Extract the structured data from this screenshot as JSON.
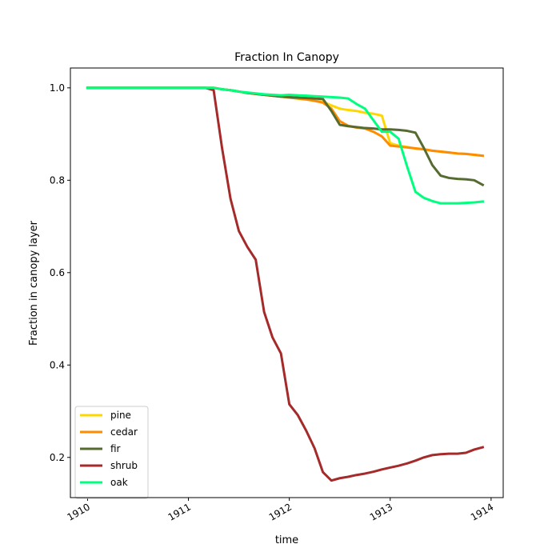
{
  "chart_data": {
    "type": "line",
    "title": "Fraction In Canopy",
    "xlabel": "time",
    "ylabel": "Fraction in canopy layer",
    "xlim": [
      1909.83,
      1914.12
    ],
    "ylim": [
      0.113,
      1.043
    ],
    "x_ticks": [
      1910,
      1911,
      1912,
      1913,
      1914
    ],
    "x_tick_labels": [
      "1910",
      "1911",
      "1912",
      "1913",
      "1914"
    ],
    "y_ticks": [
      0.2,
      0.4,
      0.6,
      0.8,
      1.0
    ],
    "y_tick_labels": [
      "0.2",
      "0.4",
      "0.6",
      "0.8",
      "1.0"
    ],
    "grid": false,
    "legend_position": "lower-left",
    "x": [
      1910.0,
      1910.25,
      1910.5,
      1910.75,
      1911.0,
      1911.083,
      1911.167,
      1911.25,
      1911.333,
      1911.417,
      1911.5,
      1911.583,
      1911.667,
      1911.75,
      1911.833,
      1911.917,
      1912.0,
      1912.083,
      1912.167,
      1912.25,
      1912.333,
      1912.417,
      1912.5,
      1912.583,
      1912.667,
      1912.75,
      1912.833,
      1912.917,
      1913.0,
      1913.083,
      1913.167,
      1913.25,
      1913.333,
      1913.417,
      1913.5,
      1913.583,
      1913.667,
      1913.75,
      1913.833,
      1913.917
    ],
    "series": [
      {
        "name": "pine",
        "color": "#ffd700",
        "values": [
          1.0,
          1.0,
          1.0,
          1.0,
          1.0,
          1.0,
          1.0,
          1.0,
          0.997,
          0.995,
          0.992,
          0.989,
          0.987,
          0.985,
          0.983,
          0.981,
          0.979,
          0.977,
          0.975,
          0.972,
          0.97,
          0.962,
          0.955,
          0.952,
          0.95,
          0.946,
          0.944,
          0.94,
          0.88,
          0.875,
          0.872,
          0.869,
          0.867,
          0.864,
          0.862,
          0.86,
          0.858,
          0.857,
          0.855,
          0.853
        ]
      },
      {
        "name": "cedar",
        "color": "#ff8c00",
        "values": [
          1.0,
          1.0,
          1.0,
          1.0,
          1.0,
          1.0,
          1.0,
          1.0,
          0.997,
          0.995,
          0.992,
          0.989,
          0.987,
          0.985,
          0.983,
          0.981,
          0.979,
          0.977,
          0.975,
          0.972,
          0.968,
          0.955,
          0.928,
          0.918,
          0.914,
          0.912,
          0.905,
          0.895,
          0.875,
          0.873,
          0.871,
          0.869,
          0.867,
          0.864,
          0.862,
          0.86,
          0.858,
          0.857,
          0.855,
          0.853
        ]
      },
      {
        "name": "fir",
        "color": "#556b2f",
        "values": [
          1.0,
          1.0,
          1.0,
          1.0,
          1.0,
          1.0,
          1.0,
          1.0,
          0.997,
          0.995,
          0.992,
          0.989,
          0.987,
          0.985,
          0.983,
          0.981,
          0.98,
          0.979,
          0.978,
          0.977,
          0.976,
          0.95,
          0.92,
          0.917,
          0.915,
          0.913,
          0.912,
          0.91,
          0.91,
          0.909,
          0.907,
          0.903,
          0.87,
          0.833,
          0.81,
          0.805,
          0.803,
          0.802,
          0.8,
          0.79
        ]
      },
      {
        "name": "shrub",
        "color": "#a52a2a",
        "values": [
          1.0,
          1.0,
          1.0,
          1.0,
          1.0,
          1.0,
          1.0,
          0.995,
          0.87,
          0.76,
          0.69,
          0.656,
          0.628,
          0.515,
          0.46,
          0.425,
          0.315,
          0.292,
          0.258,
          0.22,
          0.168,
          0.15,
          0.155,
          0.158,
          0.162,
          0.165,
          0.169,
          0.174,
          0.178,
          0.182,
          0.187,
          0.193,
          0.2,
          0.205,
          0.207,
          0.208,
          0.208,
          0.21,
          0.217,
          0.222
        ]
      },
      {
        "name": "oak",
        "color": "#00ff7f",
        "values": [
          1.0,
          1.0,
          1.0,
          1.0,
          1.0,
          1.0,
          1.0,
          1.0,
          0.997,
          0.995,
          0.992,
          0.99,
          0.988,
          0.986,
          0.985,
          0.984,
          0.985,
          0.984,
          0.983,
          0.982,
          0.981,
          0.98,
          0.979,
          0.977,
          0.965,
          0.955,
          0.93,
          0.905,
          0.905,
          0.89,
          0.83,
          0.775,
          0.762,
          0.755,
          0.75,
          0.75,
          0.75,
          0.751,
          0.752,
          0.754
        ]
      }
    ]
  }
}
